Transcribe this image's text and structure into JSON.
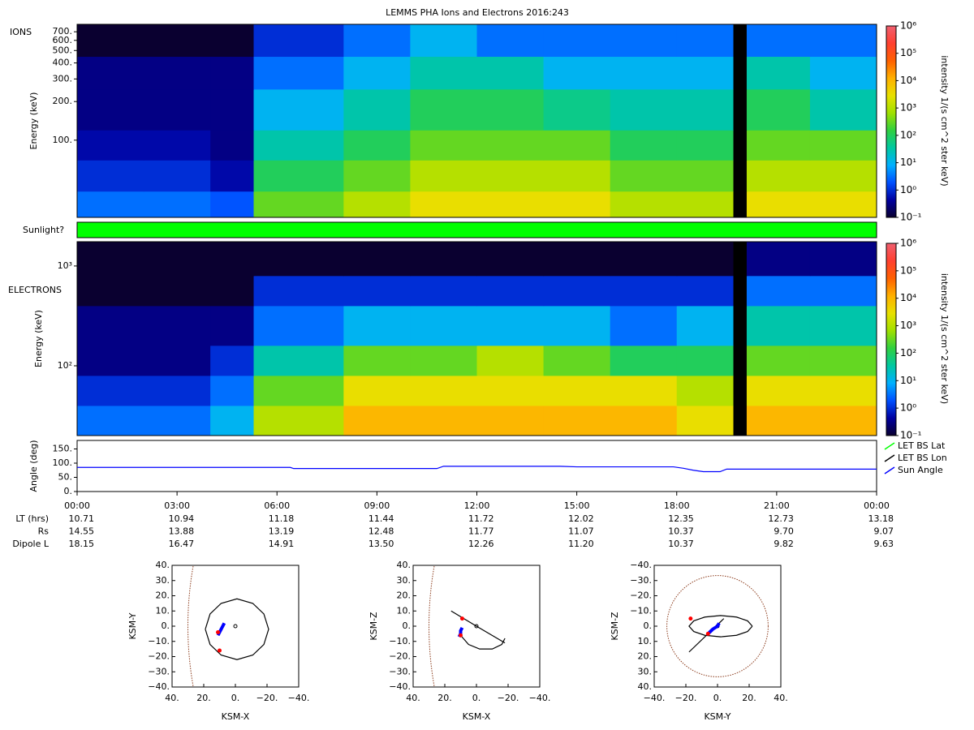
{
  "title": "LEMMS PHA Ions and Electrons  2016:243",
  "colormap": [
    "#0a0030",
    "#0000a0",
    "#0050ff",
    "#00b0ff",
    "#00c8a0",
    "#30d040",
    "#a0e000",
    "#e8e000",
    "#ffb000",
    "#ff6000",
    "#ff4030",
    "#f06070"
  ],
  "chart_data": [
    {
      "type": "heatmap",
      "panel_label": "IONS",
      "ylabel": "Energy (keV)",
      "ylog": true,
      "xlim": [
        0,
        24
      ],
      "ylim": [
        25,
        800
      ],
      "yticks": [
        {
          "value": 100,
          "label": "100."
        },
        {
          "value": 200,
          "label": "200."
        },
        {
          "value": 300,
          "label": "300."
        },
        {
          "value": 400,
          "label": "400."
        },
        {
          "value": 500,
          "label": "500."
        },
        {
          "value": 600,
          "label": "600."
        },
        {
          "value": 700,
          "label": "700."
        }
      ],
      "x_bins": [
        0,
        2,
        4,
        5.3,
        8,
        10,
        12,
        14,
        16,
        18,
        19.7,
        20.1,
        22,
        24
      ],
      "y_bins": [
        25,
        40,
        70,
        120,
        250,
        450,
        800
      ],
      "z": [
        [
          3,
          3,
          2,
          300,
          1000,
          3000,
          3000,
          3000,
          1000,
          1000,
          null,
          3000,
          3000
        ],
        [
          1,
          1,
          0.5,
          100,
          300,
          1000,
          1000,
          1000,
          300,
          300,
          null,
          1000,
          1000
        ],
        [
          0.5,
          0.5,
          0.3,
          30,
          100,
          300,
          300,
          300,
          100,
          100,
          null,
          300,
          300
        ],
        [
          0.3,
          0.3,
          0.3,
          10,
          30,
          100,
          100,
          50,
          30,
          30,
          null,
          100,
          30
        ],
        [
          0.3,
          0.3,
          0.3,
          3,
          10,
          30,
          30,
          10,
          10,
          10,
          null,
          30,
          10
        ],
        [
          0.1,
          0.1,
          0.1,
          1,
          3,
          10,
          3,
          3,
          3,
          3,
          null,
          3,
          3
        ]
      ],
      "colorbar": {
        "label": "intensity 1/(s cm^2 ster keV)",
        "lim": [
          0.1,
          1000000
        ],
        "ticks": [
          {
            "value": 0.1,
            "label": "10⁻¹"
          },
          {
            "value": 1,
            "label": "10⁰"
          },
          {
            "value": 10,
            "label": "10¹"
          },
          {
            "value": 100,
            "label": "10²"
          },
          {
            "value": 1000,
            "label": "10³"
          },
          {
            "value": 10000,
            "label": "10⁴"
          },
          {
            "value": 100000,
            "label": "10⁵"
          },
          {
            "value": 1000000,
            "label": "10⁶"
          }
        ]
      }
    },
    {
      "type": "band",
      "panel_label": "Sunlight?",
      "color": "#00ff00"
    },
    {
      "type": "heatmap",
      "panel_label": "ELECTRONS",
      "ylabel": "Energy (keV)",
      "ylog": true,
      "xlim": [
        0,
        24
      ],
      "ylim": [
        20,
        1750
      ],
      "yticks": [
        {
          "value": 100,
          "label": "10²"
        },
        {
          "value": 1000,
          "label": "10³"
        }
      ],
      "x_bins": [
        0,
        2,
        4,
        5.3,
        8,
        10,
        12,
        14,
        16,
        18,
        19.7,
        20.1,
        22,
        24
      ],
      "y_bins": [
        20,
        40,
        80,
        160,
        400,
        800,
        1750
      ],
      "z": [
        [
          3,
          3,
          10,
          1000,
          10000,
          10000,
          10000,
          10000,
          10000,
          3000,
          null,
          10000,
          10000
        ],
        [
          1,
          1,
          3,
          300,
          3000,
          3000,
          3000,
          3000,
          3000,
          1000,
          null,
          3000,
          3000
        ],
        [
          0.3,
          0.3,
          1,
          30,
          300,
          300,
          1000,
          300,
          100,
          100,
          null,
          300,
          300
        ],
        [
          0.3,
          0.3,
          0.3,
          3,
          10,
          10,
          10,
          10,
          3,
          10,
          null,
          30,
          30
        ],
        [
          0.1,
          0.1,
          0.1,
          1,
          1,
          1,
          1,
          1,
          1,
          1,
          null,
          3,
          3
        ],
        [
          0.1,
          0.1,
          0.1,
          0.1,
          0.1,
          0.1,
          0.1,
          0.1,
          0.1,
          0.1,
          null,
          0.3,
          0.3
        ]
      ],
      "colorbar": {
        "label": "intensity 1/(s cm^2 ster keV)",
        "lim": [
          0.1,
          1000000
        ],
        "ticks": [
          {
            "value": 0.1,
            "label": "10⁻¹"
          },
          {
            "value": 1,
            "label": "10⁰"
          },
          {
            "value": 10,
            "label": "10¹"
          },
          {
            "value": 100,
            "label": "10²"
          },
          {
            "value": 1000,
            "label": "10³"
          },
          {
            "value": 10000,
            "label": "10⁴"
          },
          {
            "value": 100000,
            "label": "10⁵"
          },
          {
            "value": 1000000,
            "label": "10⁶"
          }
        ]
      }
    },
    {
      "type": "line",
      "ylabel": "Angle (deg)",
      "legend": "right",
      "xlim": [
        0,
        24
      ],
      "ylim": [
        0,
        180
      ],
      "xticks": [
        {
          "value": 0,
          "label": "00:00"
        },
        {
          "value": 3,
          "label": "03:00"
        },
        {
          "value": 6,
          "label": "06:00"
        },
        {
          "value": 9,
          "label": "09:00"
        },
        {
          "value": 12,
          "label": "12:00"
        },
        {
          "value": 15,
          "label": "15:00"
        },
        {
          "value": 18,
          "label": "18:00"
        },
        {
          "value": 21,
          "label": "21:00"
        },
        {
          "value": 24,
          "label": "00:00"
        }
      ],
      "yticks": [
        {
          "value": 0,
          "label": "0."
        },
        {
          "value": 50,
          "label": "50."
        },
        {
          "value": 100,
          "label": "100."
        },
        {
          "value": 150,
          "label": "150."
        }
      ],
      "x": [
        0,
        6.4,
        6.5,
        10.8,
        11.0,
        14.5,
        15.0,
        17.9,
        18.2,
        18.5,
        18.8,
        19.3,
        19.5,
        24
      ],
      "series": [
        {
          "name": "LET BS Lat",
          "color": "#00ff00",
          "values": [
            null,
            null,
            null,
            null,
            null,
            null,
            null,
            null,
            null,
            null,
            null,
            null,
            null,
            null
          ]
        },
        {
          "name": "LET BS Lon",
          "color": "#000000",
          "values": [
            null,
            null,
            null,
            null,
            null,
            null,
            null,
            null,
            null,
            null,
            null,
            null,
            null,
            null
          ]
        },
        {
          "name": "Sun Angle",
          "color": "#0000ff",
          "values": [
            85,
            85,
            81,
            81,
            89,
            89,
            87,
            87,
            82,
            75,
            70,
            70,
            79,
            79
          ]
        }
      ],
      "ephemeris": [
        {
          "label": "LT (hrs)",
          "values": [
            "10.71",
            "10.94",
            "11.18",
            "11.44",
            "11.72",
            "12.02",
            "12.35",
            "12.73",
            "13.18"
          ]
        },
        {
          "label": "Rs",
          "values": [
            "14.55",
            "13.88",
            "13.19",
            "12.48",
            "11.77",
            "11.07",
            "10.37",
            "9.70",
            "9.07"
          ]
        },
        {
          "label": "Dipole L",
          "values": [
            "18.15",
            "16.47",
            "14.91",
            "13.50",
            "12.26",
            "11.20",
            "10.37",
            "9.82",
            "9.63"
          ]
        }
      ]
    },
    {
      "type": "orbit",
      "xlabel": "KSM-X",
      "ylabel": "KSM-Y",
      "xlim": [
        40,
        -40
      ],
      "ylim": [
        40,
        -40
      ],
      "xticks": [
        {
          "value": 40,
          "label": "40."
        },
        {
          "value": 20,
          "label": "20."
        },
        {
          "value": 0,
          "label": "0."
        },
        {
          "value": -20,
          "label": "−20."
        },
        {
          "value": -40,
          "label": "−40."
        }
      ],
      "yticks": [
        {
          "value": -40,
          "label": "−40."
        },
        {
          "value": -30,
          "label": "−30."
        },
        {
          "value": -20,
          "label": "−20."
        },
        {
          "value": -10,
          "label": "−10."
        },
        {
          "value": 0,
          "label": "0."
        },
        {
          "value": 10,
          "label": "10."
        },
        {
          "value": 20,
          "label": "20."
        },
        {
          "value": 30,
          "label": "30."
        },
        {
          "value": 40,
          "label": "40."
        }
      ],
      "series": [
        {
          "color": "#000000",
          "x": [
            19,
            16,
            9,
            -1,
            -11,
            -18,
            -21,
            -18,
            -11,
            -1,
            9,
            16,
            19
          ],
          "y": [
            -2,
            8,
            15,
            18,
            15,
            8,
            -2,
            -12,
            -19,
            -22,
            -19,
            -12,
            -2
          ]
        },
        {
          "color": "#0000ff",
          "x": [
            11,
            10,
            9,
            8,
            7
          ],
          "y": [
            -6,
            -4,
            -2,
            0,
            2
          ]
        }
      ],
      "markers": {
        "color": "#ff0000",
        "x": [
          10,
          11
        ],
        "y": [
          -16,
          -4
        ]
      }
    },
    {
      "type": "orbit",
      "xlabel": "KSM-X",
      "ylabel": "KSM-Z",
      "xlim": [
        40,
        -40
      ],
      "ylim": [
        40,
        -40
      ],
      "xticks": [
        {
          "value": 40,
          "label": "40."
        },
        {
          "value": 20,
          "label": "20."
        },
        {
          "value": 0,
          "label": "0."
        },
        {
          "value": -20,
          "label": "−20."
        },
        {
          "value": -40,
          "label": "−40."
        }
      ],
      "yticks": [
        {
          "value": -40,
          "label": "−40."
        },
        {
          "value": -30,
          "label": "−30."
        },
        {
          "value": -20,
          "label": "−20."
        },
        {
          "value": -10,
          "label": "−10."
        },
        {
          "value": 0,
          "label": "0."
        },
        {
          "value": 10,
          "label": "10."
        },
        {
          "value": 20,
          "label": "20."
        },
        {
          "value": 30,
          "label": "30."
        },
        {
          "value": 40,
          "label": "40."
        }
      ],
      "series": [
        {
          "color": "#000000",
          "x": [
            16,
            0,
            -18
          ],
          "y": [
            10,
            0,
            -11
          ]
        },
        {
          "color": "#000000",
          "x": [
            10,
            5,
            -2,
            -10,
            -16,
            -18
          ],
          "y": [
            -6,
            -12,
            -15,
            -15,
            -12,
            -8
          ]
        },
        {
          "color": "#0000ff",
          "x": [
            11,
            10,
            10,
            9
          ],
          "y": [
            -7,
            -5,
            -3,
            -1
          ]
        }
      ],
      "markers": {
        "color": "#ff0000",
        "x": [
          10,
          9
        ],
        "y": [
          -6,
          5
        ]
      }
    },
    {
      "type": "orbit",
      "xlabel": "KSM-Y",
      "ylabel": "KSM-Z",
      "xlim": [
        -40,
        40
      ],
      "ylim": [
        -40,
        40
      ],
      "xticks": [
        {
          "value": -40,
          "label": "−40."
        },
        {
          "value": -20,
          "label": "−20."
        },
        {
          "value": 0,
          "label": "0."
        },
        {
          "value": 20,
          "label": "20."
        },
        {
          "value": 40,
          "label": "40."
        }
      ],
      "yticks": [
        {
          "value": 40,
          "label": "40."
        },
        {
          "value": 30,
          "label": "30."
        },
        {
          "value": 20,
          "label": "20."
        },
        {
          "value": 10,
          "label": "10."
        },
        {
          "value": 0,
          "label": "0."
        },
        {
          "value": -10,
          "label": "−10."
        },
        {
          "value": -20,
          "label": "−20."
        },
        {
          "value": -30,
          "label": "−30."
        },
        {
          "value": -40,
          "label": "−40."
        }
      ],
      "series": [
        {
          "color": "#000000",
          "x": [
            22,
            19,
            12,
            2,
            -8,
            -15,
            -18,
            -15,
            -8,
            2,
            12,
            19,
            22
          ],
          "y": [
            0,
            3.5,
            6,
            7,
            6,
            3.5,
            0,
            -3.5,
            -6,
            -7,
            -6,
            -3.5,
            0
          ]
        },
        {
          "color": "#000000",
          "x": [
            -18,
            4
          ],
          "y": [
            17,
            -5
          ]
        },
        {
          "color": "#0000ff",
          "x": [
            -6,
            -3,
            0,
            1
          ],
          "y": [
            5,
            2,
            0,
            -2
          ]
        }
      ],
      "markers": {
        "color": "#ff0000",
        "x": [
          -17,
          -6
        ],
        "y": [
          -5,
          5
        ]
      }
    }
  ]
}
